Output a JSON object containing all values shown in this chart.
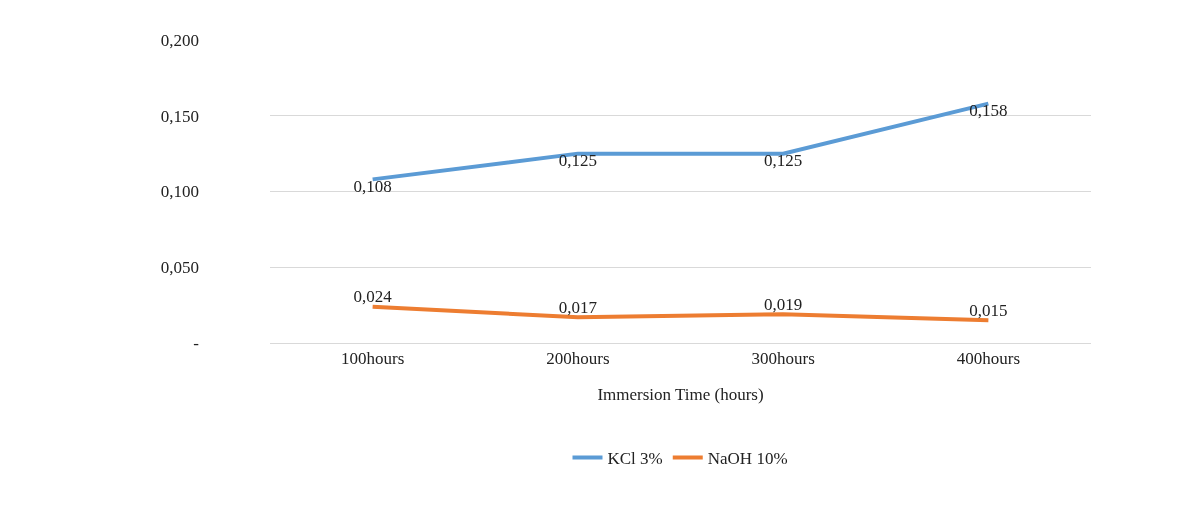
{
  "chart_data": {
    "type": "line",
    "xlabel": "Immersion Time (hours)",
    "categories": [
      "100hours",
      "200hours",
      "300hours",
      "400hours"
    ],
    "series": [
      {
        "name": "KCl 3%",
        "color": "#5b9bd5",
        "values": [
          0.108,
          0.125,
          0.125,
          0.158
        ],
        "value_labels": [
          "0,108",
          "0,125",
          "0,125",
          "0,158"
        ]
      },
      {
        "name": "NaOH 10%",
        "color": "#ed7d31",
        "values": [
          0.024,
          0.017,
          0.019,
          0.015
        ],
        "value_labels": [
          "0,024",
          "0,017",
          "0,019",
          "0,015"
        ]
      }
    ],
    "ylim": [
      0,
      0.2
    ],
    "yticks": [
      {
        "value": 0,
        "label": "-"
      },
      {
        "value": 0.05,
        "label": "0,050"
      },
      {
        "value": 0.1,
        "label": "0,100"
      },
      {
        "value": 0.15,
        "label": "0,150"
      },
      {
        "value": 0.2,
        "label": "0,200"
      }
    ],
    "grid": "y",
    "legend": "bottom",
    "marker": "none",
    "line_style": "solid"
  }
}
